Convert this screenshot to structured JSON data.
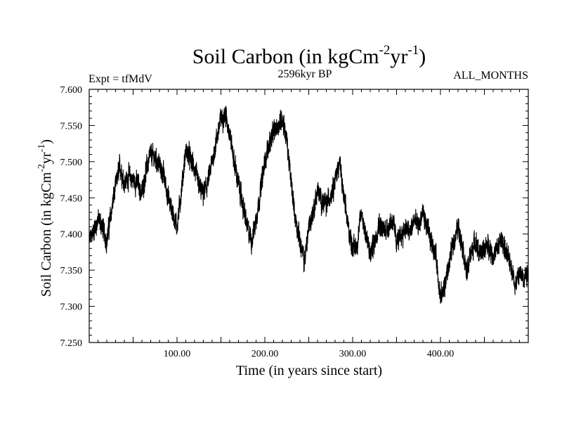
{
  "chart_data": {
    "type": "line",
    "title": {
      "base": "Soil Carbon (in kgCm",
      "exp1": "-2",
      "mid": "yr",
      "exp2": "-1",
      "end": ")"
    },
    "subtitle_left": "Expt = tfMdV",
    "subtitle_center": "2596kyr BP",
    "subtitle_right": "ALL_MONTHS",
    "xlabel": "Time (in years since start)",
    "ylabel": {
      "base": "Soil Carbon (in kgCm",
      "exp1": "-2",
      "mid": "yr",
      "exp2": "-1",
      "end": ")"
    },
    "xlim": [
      0,
      500
    ],
    "ylim": [
      7.25,
      7.6
    ],
    "x_ticks": [
      100,
      200,
      300,
      400
    ],
    "x_tick_labels": [
      "100.00",
      "200.00",
      "300.00",
      "400.00"
    ],
    "y_ticks": [
      7.25,
      7.3,
      7.35,
      7.4,
      7.45,
      7.5,
      7.55,
      7.6
    ],
    "y_tick_labels": [
      "7.250",
      "7.300",
      "7.350",
      "7.400",
      "7.450",
      "7.500",
      "7.550",
      "7.600"
    ],
    "series": [
      {
        "name": "Soil Carbon",
        "color": "#000000",
        "noise_amplitude": 0.012,
        "samples_per_year": 10,
        "trend_x": [
          0,
          5,
          10,
          15,
          20,
          25,
          30,
          35,
          40,
          45,
          50,
          55,
          60,
          65,
          70,
          75,
          80,
          85,
          90,
          95,
          100,
          105,
          110,
          115,
          120,
          125,
          130,
          135,
          140,
          145,
          150,
          155,
          160,
          165,
          170,
          175,
          180,
          185,
          190,
          195,
          200,
          205,
          210,
          215,
          220,
          225,
          230,
          235,
          240,
          245,
          250,
          255,
          260,
          265,
          270,
          275,
          280,
          285,
          290,
          295,
          300,
          305,
          310,
          315,
          320,
          325,
          330,
          335,
          340,
          345,
          350,
          355,
          360,
          365,
          370,
          375,
          380,
          385,
          390,
          395,
          400,
          405,
          410,
          415,
          420,
          425,
          430,
          435,
          440,
          445,
          450,
          455,
          460,
          465,
          470,
          475,
          480,
          485,
          490,
          495,
          500
        ],
        "trend_y": [
          7.39,
          7.405,
          7.42,
          7.41,
          7.39,
          7.43,
          7.465,
          7.495,
          7.47,
          7.48,
          7.475,
          7.47,
          7.455,
          7.49,
          7.51,
          7.505,
          7.495,
          7.48,
          7.45,
          7.43,
          7.41,
          7.46,
          7.515,
          7.505,
          7.49,
          7.465,
          7.455,
          7.47,
          7.5,
          7.53,
          7.56,
          7.565,
          7.54,
          7.5,
          7.47,
          7.44,
          7.41,
          7.39,
          7.42,
          7.46,
          7.5,
          7.525,
          7.54,
          7.55,
          7.56,
          7.53,
          7.47,
          7.42,
          7.39,
          7.36,
          7.41,
          7.43,
          7.46,
          7.445,
          7.44,
          7.455,
          7.475,
          7.5,
          7.45,
          7.41,
          7.38,
          7.385,
          7.43,
          7.4,
          7.37,
          7.39,
          7.415,
          7.405,
          7.41,
          7.42,
          7.39,
          7.395,
          7.41,
          7.4,
          7.42,
          7.41,
          7.43,
          7.405,
          7.39,
          7.37,
          7.31,
          7.33,
          7.36,
          7.39,
          7.41,
          7.385,
          7.345,
          7.375,
          7.39,
          7.37,
          7.38,
          7.385,
          7.37,
          7.38,
          7.395,
          7.37,
          7.36,
          7.33,
          7.345,
          7.34,
          7.35
        ]
      }
    ]
  }
}
